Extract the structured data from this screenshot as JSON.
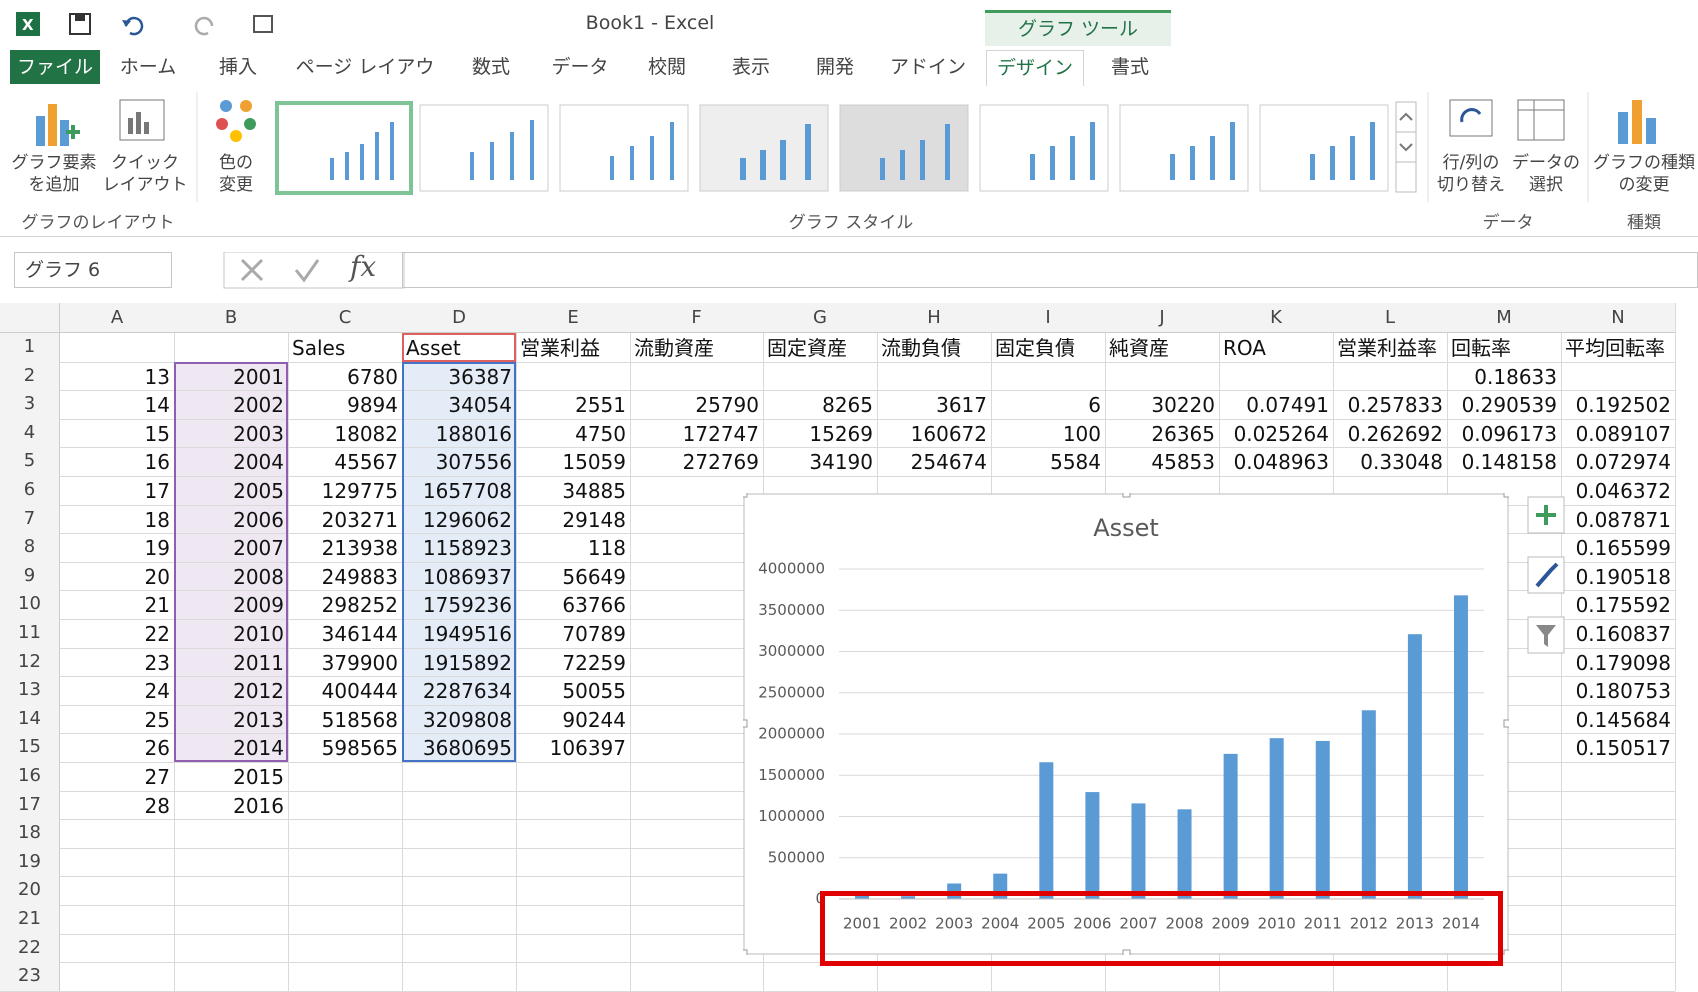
{
  "title_bar": {
    "title": "Book1 - Excel",
    "context": "グラフ ツール"
  },
  "tabs": [
    "ファイル",
    "ホーム",
    "挿入",
    "ページ レイアウト",
    "数式",
    "データ",
    "校閲",
    "表示",
    "開発",
    "アドイン",
    "デザイン",
    "書式"
  ],
  "ribbon": {
    "add_element": [
      "グラフ要素",
      "を追加"
    ],
    "quick_layout": [
      "クイック",
      "レイアウト"
    ],
    "layout_group": "グラフのレイアウト",
    "colors": [
      "色の",
      "変更"
    ],
    "styles_group": "グラフ スタイル",
    "switch": [
      "行/列の",
      "切り替え"
    ],
    "select_data": [
      "データの",
      "選択"
    ],
    "data_group": "データ",
    "change_type": [
      "グラフの種類",
      "の変更"
    ],
    "type_group": "種類"
  },
  "name_box": "グラフ 6",
  "formula_fx": "fx",
  "sheet": {
    "columns": [
      "A",
      "B",
      "C",
      "D",
      "E",
      "F",
      "G",
      "H",
      "I",
      "J",
      "K",
      "L",
      "M",
      "N"
    ],
    "rows": [
      {
        "n": "1",
        "cells": [
          null,
          null,
          "Sales",
          "Asset",
          "営業利益",
          "流動資産",
          "固定資産",
          "流動負債",
          "固定負債",
          "純資産",
          "ROA",
          "営業利益率",
          "回転率",
          "平均回転率"
        ]
      },
      {
        "n": "2",
        "cells": [
          "13",
          "2001",
          "6780",
          "36387",
          null,
          null,
          null,
          null,
          null,
          null,
          null,
          null,
          "0.18633",
          null
        ]
      },
      {
        "n": "3",
        "cells": [
          "14",
          "2002",
          "9894",
          "34054",
          "2551",
          "25790",
          "8265",
          "3617",
          "6",
          "30220",
          "0.07491",
          "0.257833",
          "0.290539",
          "0.192502"
        ]
      },
      {
        "n": "4",
        "cells": [
          "15",
          "2003",
          "18082",
          "188016",
          "4750",
          "172747",
          "15269",
          "160672",
          "100",
          "26365",
          "0.025264",
          "0.262692",
          "0.096173",
          "0.089107"
        ]
      },
      {
        "n": "5",
        "cells": [
          "16",
          "2004",
          "45567",
          "307556",
          "15059",
          "272769",
          "34190",
          "254674",
          "5584",
          "45853",
          "0.048963",
          "0.33048",
          "0.148158",
          "0.072974"
        ]
      },
      {
        "n": "6",
        "cells": [
          "17",
          "2005",
          "129775",
          "1657708",
          "34885",
          null,
          null,
          null,
          null,
          null,
          null,
          null,
          null,
          "0.046372"
        ]
      },
      {
        "n": "7",
        "cells": [
          "18",
          "2006",
          "203271",
          "1296062",
          "29148",
          null,
          null,
          null,
          null,
          null,
          null,
          null,
          null,
          "0.087871"
        ]
      },
      {
        "n": "8",
        "cells": [
          "19",
          "2007",
          "213938",
          "1158923",
          "118",
          null,
          null,
          null,
          null,
          null,
          null,
          null,
          null,
          "0.165599"
        ]
      },
      {
        "n": "9",
        "cells": [
          "20",
          "2008",
          "249883",
          "1086937",
          "56649",
          null,
          null,
          null,
          null,
          null,
          null,
          null,
          null,
          "0.190518"
        ]
      },
      {
        "n": "10",
        "cells": [
          "21",
          "2009",
          "298252",
          "1759236",
          "63766",
          null,
          null,
          null,
          null,
          null,
          null,
          null,
          null,
          "0.175592"
        ]
      },
      {
        "n": "11",
        "cells": [
          "22",
          "2010",
          "346144",
          "1949516",
          "70789",
          null,
          null,
          null,
          null,
          null,
          null,
          null,
          null,
          "0.160837"
        ]
      },
      {
        "n": "12",
        "cells": [
          "23",
          "2011",
          "379900",
          "1915892",
          "72259",
          null,
          null,
          null,
          null,
          null,
          null,
          null,
          null,
          "0.179098"
        ]
      },
      {
        "n": "13",
        "cells": [
          "24",
          "2012",
          "400444",
          "2287634",
          "50055",
          null,
          null,
          null,
          null,
          null,
          null,
          null,
          null,
          "0.180753"
        ]
      },
      {
        "n": "14",
        "cells": [
          "25",
          "2013",
          "518568",
          "3209808",
          "90244",
          null,
          null,
          null,
          null,
          null,
          null,
          null,
          null,
          "0.145684"
        ]
      },
      {
        "n": "15",
        "cells": [
          "26",
          "2014",
          "598565",
          "3680695",
          "106397",
          null,
          null,
          null,
          null,
          null,
          null,
          null,
          null,
          "0.150517"
        ]
      },
      {
        "n": "16",
        "cells": [
          "27",
          "2015"
        ]
      },
      {
        "n": "17",
        "cells": [
          "28",
          "2016"
        ]
      },
      {
        "n": "18",
        "cells": []
      },
      {
        "n": "19",
        "cells": []
      },
      {
        "n": "20",
        "cells": []
      },
      {
        "n": "21",
        "cells": []
      },
      {
        "n": "22",
        "cells": []
      },
      {
        "n": "23",
        "cells": []
      }
    ]
  },
  "chart_data": {
    "type": "bar",
    "title": "Asset",
    "categories": [
      "2001",
      "2002",
      "2003",
      "2004",
      "2005",
      "2006",
      "2007",
      "2008",
      "2009",
      "2010",
      "2011",
      "2012",
      "2013",
      "2014"
    ],
    "values": [
      36387,
      34054,
      188016,
      307556,
      1657708,
      1296062,
      1158923,
      1086937,
      1759236,
      1949516,
      1915892,
      2287634,
      3209808,
      3680695
    ],
    "color": "#5b9bd5",
    "ylim": [
      0,
      4000000
    ],
    "yticks": [
      0,
      500000,
      1000000,
      1500000,
      2000000,
      2500000,
      3000000,
      3500000,
      4000000
    ],
    "grid": true
  }
}
